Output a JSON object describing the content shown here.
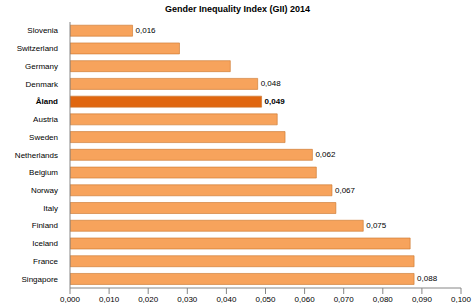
{
  "chart_data": {
    "type": "bar",
    "orientation": "horizontal",
    "title": "Gender Inequality Index (GII) 2014",
    "categories": [
      "Slovenia",
      "Switzerland",
      "Germany",
      "Denmark",
      "Åland",
      "Austria",
      "Sweden",
      "Netherlands",
      "Belgium",
      "Norway",
      "Italy",
      "Finland",
      "Iceland",
      "France",
      "Singapore"
    ],
    "values": [
      0.016,
      0.028,
      0.041,
      0.048,
      0.049,
      0.053,
      0.055,
      0.062,
      0.063,
      0.067,
      0.068,
      0.075,
      0.087,
      0.088,
      0.088
    ],
    "value_labels": [
      "0,016",
      null,
      null,
      "0,048",
      "0,049",
      null,
      null,
      "0,062",
      null,
      "0,067",
      null,
      "0,075",
      null,
      null,
      "0,088"
    ],
    "data_labels": true,
    "colors": [
      "#f7a35c",
      "#f7a35c",
      "#f7a35c",
      "#f7a35c",
      "#e0660f",
      "#f7a35c",
      "#f7a35c",
      "#f7a35c",
      "#f7a35c",
      "#f7a35c",
      "#f7a35c",
      "#f7a35c",
      "#f7a35c",
      "#f7a35c",
      "#f7a35c"
    ],
    "xlim": [
      0,
      0.1
    ],
    "xticks": [
      {
        "value": 0,
        "label": "0,000"
      },
      {
        "value": 0.01,
        "label": "0,010"
      },
      {
        "value": 0.02,
        "label": "0,020"
      },
      {
        "value": 0.03,
        "label": "0,030"
      },
      {
        "value": 0.04,
        "label": "0,040"
      },
      {
        "value": 0.05,
        "label": "0,050"
      },
      {
        "value": 0.06,
        "label": "0,060"
      },
      {
        "value": 0.07,
        "label": "0,070"
      },
      {
        "value": 0.08,
        "label": "0,080"
      },
      {
        "value": 0.09,
        "label": "0,090"
      },
      {
        "value": 0.1,
        "label": "0,100"
      }
    ],
    "grid": false
  }
}
